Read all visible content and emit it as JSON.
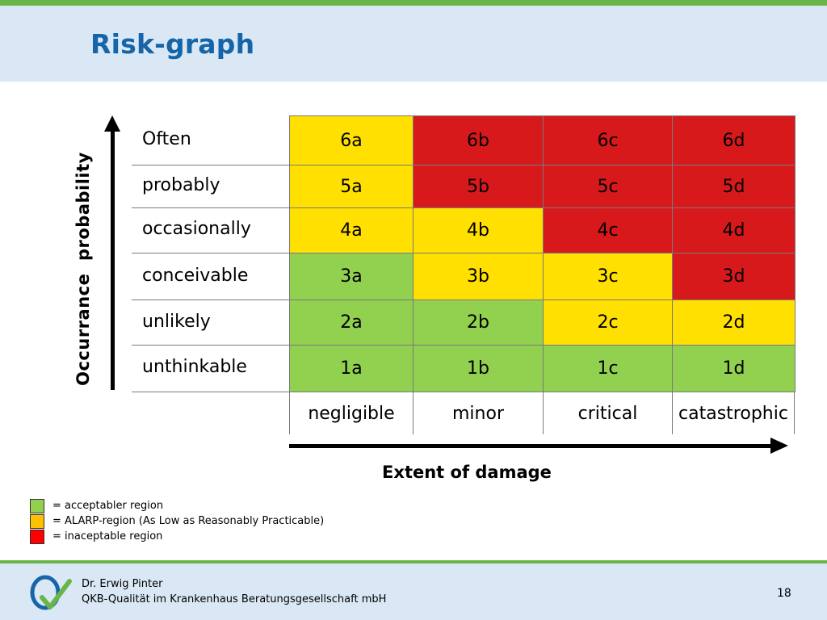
{
  "slide": {
    "title": "Risk-graph",
    "page_number": "18"
  },
  "axes": {
    "y_label": "Occurrance  probability",
    "x_label": "Extent of damage"
  },
  "colors": {
    "green": "#92d050",
    "yellow": "#ffe000",
    "red": "#d7191c",
    "legend_green": "#92d050",
    "legend_yellow": "#ffc000",
    "legend_red": "#ff0000",
    "header_bg": "#d9e8f4",
    "accent_green": "#6ab54a",
    "title_blue": "#1565a8"
  },
  "matrix": {
    "rows": [
      {
        "label": "Often",
        "cells": [
          {
            "code": "6a",
            "zone": "yellow"
          },
          {
            "code": "6b",
            "zone": "red"
          },
          {
            "code": "6c",
            "zone": "red"
          },
          {
            "code": "6d",
            "zone": "red"
          }
        ]
      },
      {
        "label": "probably",
        "cells": [
          {
            "code": "5a",
            "zone": "yellow"
          },
          {
            "code": "5b",
            "zone": "red"
          },
          {
            "code": "5c",
            "zone": "red"
          },
          {
            "code": "5d",
            "zone": "red"
          }
        ]
      },
      {
        "label": "occasionally",
        "cells": [
          {
            "code": "4a",
            "zone": "yellow"
          },
          {
            "code": "4b",
            "zone": "yellow"
          },
          {
            "code": "4c",
            "zone": "red"
          },
          {
            "code": "4d",
            "zone": "red"
          }
        ]
      },
      {
        "label": "conceivable",
        "cells": [
          {
            "code": "3a",
            "zone": "green"
          },
          {
            "code": "3b",
            "zone": "yellow"
          },
          {
            "code": "3c",
            "zone": "yellow"
          },
          {
            "code": "3d",
            "zone": "red"
          }
        ]
      },
      {
        "label": "unlikely",
        "cells": [
          {
            "code": "2a",
            "zone": "green"
          },
          {
            "code": "2b",
            "zone": "green"
          },
          {
            "code": "2c",
            "zone": "yellow"
          },
          {
            "code": "2d",
            "zone": "yellow"
          }
        ]
      },
      {
        "label": "unthinkable",
        "cells": [
          {
            "code": "1a",
            "zone": "green"
          },
          {
            "code": "1b",
            "zone": "green"
          },
          {
            "code": "1c",
            "zone": "green"
          },
          {
            "code": "1d",
            "zone": "green"
          }
        ]
      }
    ],
    "columns": [
      "negligible",
      "minor",
      "critical",
      "catastrophic"
    ]
  },
  "legend": [
    {
      "color": "legend_green",
      "text": "= acceptabler region"
    },
    {
      "color": "legend_yellow",
      "text": "= ALARP-region (As Low as Reasonably Practicable)"
    },
    {
      "color": "legend_red",
      "text": "= inaceptable region"
    }
  ],
  "footer": {
    "name": "Dr. Erwig Pinter",
    "company": "QKB-Qualität im Krankenhaus Beratungsgesellschaft mbH",
    "logo_icon": "qkb-logo-icon"
  }
}
